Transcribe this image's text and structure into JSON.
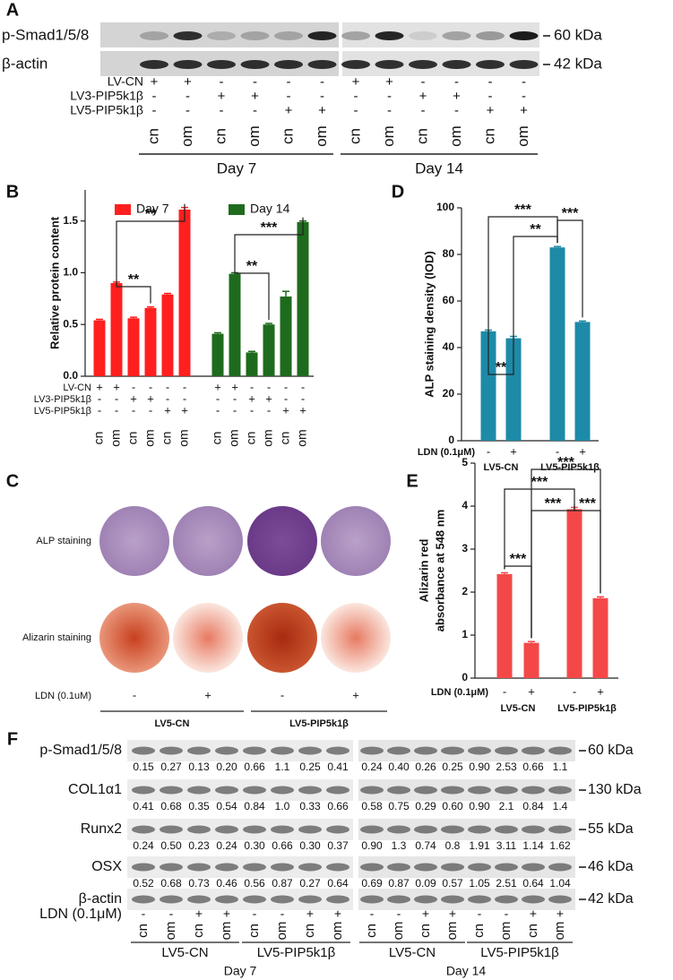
{
  "panel_a": {
    "label": "A",
    "blot_rows": [
      {
        "name": "p-Smad1/5/8",
        "size": "60 kDa"
      },
      {
        "name": "β-actin",
        "size": "42 kDa"
      }
    ],
    "treatments": [
      {
        "name": "LV-CN",
        "signs": [
          "+",
          "+",
          "-",
          "-",
          "-",
          "-",
          "+",
          "+",
          "-",
          "-",
          "-",
          "-"
        ]
      },
      {
        "name": "LV3-PIP5k1β",
        "signs": [
          "-",
          "-",
          "+",
          "+",
          "-",
          "-",
          "-",
          "-",
          "+",
          "+",
          "-",
          "-"
        ]
      },
      {
        "name": "LV5-PIP5k1β",
        "signs": [
          "-",
          "-",
          "-",
          "-",
          "+",
          "+",
          "-",
          "-",
          "-",
          "-",
          "+",
          "+"
        ]
      }
    ],
    "lanes": [
      "cn",
      "om",
      "cn",
      "om",
      "cn",
      "om",
      "cn",
      "om",
      "cn",
      "om",
      "cn",
      "om"
    ],
    "groups": [
      "Day 7",
      "Day 14"
    ]
  },
  "chart_data": [
    {
      "type": "bar",
      "label": "B",
      "ylabel": "Relative protein content",
      "categories": [
        "cn",
        "om",
        "cn",
        "om",
        "cn",
        "om",
        "cn",
        "om",
        "cn",
        "om",
        "cn",
        "om"
      ],
      "series": [
        {
          "name": "Day 7",
          "color": "#ff1f1f",
          "values": [
            0.54,
            0.9,
            0.56,
            0.66,
            0.79,
            1.61,
            null,
            null,
            null,
            null,
            null,
            null
          ],
          "errors": [
            0.01,
            0.01,
            0.01,
            0.01,
            0.01,
            0.02,
            null,
            null,
            null,
            null,
            null,
            null
          ]
        },
        {
          "name": "Day 14",
          "color": "#1e6b1e",
          "values": [
            null,
            null,
            null,
            null,
            null,
            null,
            0.41,
            0.99,
            0.23,
            0.5,
            0.77,
            1.49
          ],
          "errors": [
            null,
            null,
            null,
            null,
            null,
            null,
            0.01,
            0.01,
            0.01,
            0.01,
            0.05,
            0.01
          ]
        }
      ],
      "ylim": [
        0,
        1.8
      ],
      "yticks": [
        {
          "value": 0,
          "label": "0.0"
        },
        {
          "value": 0.5,
          "label": "0.5"
        },
        {
          "value": 1,
          "label": "1.0"
        },
        {
          "value": 1.5,
          "label": "1.5"
        }
      ],
      "sign_rows": [
        {
          "name": "LV-CN",
          "signs": [
            "+",
            "+",
            "-",
            "-",
            "-",
            "-",
            "+",
            "+",
            "-",
            "-",
            "-",
            "-"
          ]
        },
        {
          "name": "LV3-PIP5k1β",
          "signs": [
            "-",
            "-",
            "+",
            "+",
            "-",
            "-",
            "-",
            "-",
            "+",
            "+",
            "-",
            "-"
          ]
        },
        {
          "name": "LV5-PIP5k1β",
          "signs": [
            "-",
            "-",
            "-",
            "-",
            "+",
            "+",
            "-",
            "-",
            "-",
            "-",
            "+",
            "+"
          ]
        }
      ],
      "annotations": [
        "**",
        "**",
        "***",
        "**"
      ]
    },
    {
      "type": "bar",
      "label": "D",
      "ylabel": "ALP staining density (IOD)",
      "values": [
        47,
        44,
        83,
        51
      ],
      "errors": [
        0.5,
        0.8,
        0.4,
        0.4
      ],
      "color": "#1d8aa8",
      "ylim": [
        0,
        100
      ],
      "yticks": [
        0,
        20,
        40,
        60,
        80,
        100
      ],
      "treatment": {
        "name": "LDN (0.1μM)",
        "signs": [
          "-",
          "+",
          "-",
          "+"
        ]
      },
      "groups": [
        "LV5-CN",
        "LV5-PIP5k1β"
      ],
      "annotations": [
        "***",
        "**",
        "***",
        "**"
      ]
    },
    {
      "type": "bar",
      "label": "E",
      "ylabel": [
        "Alizarin red",
        "absorbance at 548 nm"
      ],
      "values": [
        2.42,
        0.82,
        3.93,
        1.86
      ],
      "errors": [
        0.03,
        0.03,
        0.04,
        0.03
      ],
      "color": "#f44848",
      "ylim": [
        0,
        5
      ],
      "yticks": [
        0,
        1,
        2,
        3,
        4,
        5
      ],
      "treatment": {
        "name": "LDN (0.1μM)",
        "signs": [
          "-",
          "+",
          "-",
          "+"
        ]
      },
      "groups": [
        "LV5-CN",
        "LV5-PIP5k1β"
      ],
      "annotations": [
        "***",
        "***",
        "***",
        "***",
        "***"
      ]
    }
  ],
  "panel_c": {
    "label": "C",
    "rows": [
      "ALP staining",
      "Alizarin staining"
    ],
    "treatment": {
      "name": "LDN (0.1uM)",
      "signs": [
        "-",
        "+",
        "-",
        "+"
      ]
    },
    "groups": [
      "LV5-CN",
      "LV5-PIP5k1β"
    ]
  },
  "panel_f": {
    "label": "F",
    "blots": [
      {
        "name": "p-Smad1/5/8",
        "size": "60 kDa",
        "values": [
          "0.15",
          "0.27",
          "0.13",
          "0.20",
          "0.66",
          "1.1",
          "0.25",
          "0.41",
          "0.24",
          "0.40",
          "0.26",
          "0.25",
          "0.90",
          "2.53",
          "0.66",
          "1.1"
        ]
      },
      {
        "name": "COL1α1",
        "size": "130 kDa",
        "values": [
          "0.41",
          "0.68",
          "0.35",
          "0.54",
          "0.84",
          "1.0",
          "0.33",
          "0.66",
          "0.58",
          "0.75",
          "0.29",
          "0.60",
          "0.90",
          "2.1",
          "0.84",
          "1.4"
        ]
      },
      {
        "name": "Runx2",
        "size": "55 kDa",
        "values": [
          "0.24",
          "0.50",
          "0.23",
          "0.24",
          "0.30",
          "0.66",
          "0.30",
          "0.37",
          "0.90",
          "1.3",
          "0.74",
          "0.8",
          "1.91",
          "3.11",
          "1.14",
          "1.62"
        ]
      },
      {
        "name": "OSX",
        "size": "46 kDa",
        "values": [
          "0.52",
          "0.68",
          "0.73",
          "0.46",
          "0.56",
          "0.87",
          "0.27",
          "0.64",
          "0.69",
          "0.87",
          "0.09",
          "0.57",
          "1.05",
          "2.51",
          "0.64",
          "1.04"
        ]
      },
      {
        "name": "β-actin",
        "size": "42 kDa"
      }
    ],
    "treatment": {
      "name": "LDN (0.1μM)",
      "signs": [
        "-",
        "-",
        "+",
        "+",
        "-",
        "-",
        "+",
        "+",
        "-",
        "-",
        "+",
        "+",
        "-",
        "-",
        "+",
        "+"
      ]
    },
    "lanes": [
      "cn",
      "om",
      "cn",
      "om",
      "cn",
      "om",
      "cn",
      "om",
      "cn",
      "om",
      "cn",
      "om",
      "cn",
      "om",
      "cn",
      "om"
    ],
    "groups": [
      "LV5-CN",
      "LV5-PIP5k1β",
      "LV5-CN",
      "LV5-PIP5k1β"
    ],
    "days": [
      "Day 7",
      "Day 14"
    ]
  }
}
